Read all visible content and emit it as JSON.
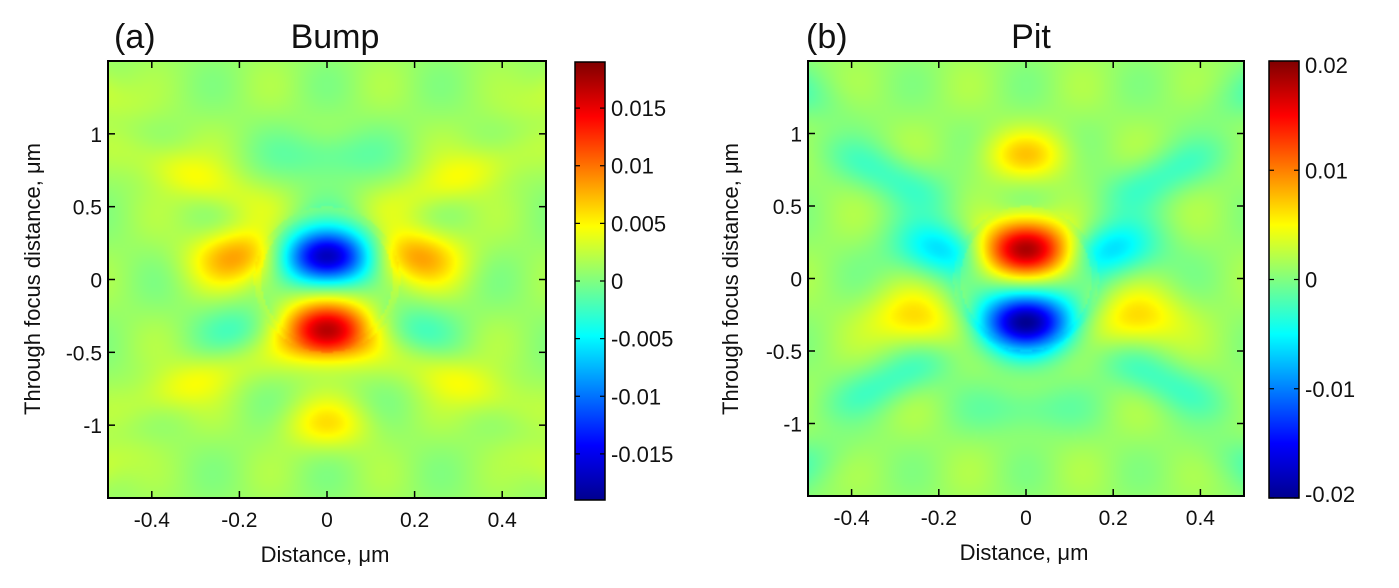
{
  "chart_data": [
    {
      "type": "heatmap",
      "panel_label": "(a)",
      "title": "Bump",
      "xlabel": "Distance, μm",
      "ylabel": "Through focus distance, μm",
      "xlim": [
        -0.5,
        0.5
      ],
      "ylim": [
        -1.5,
        1.5
      ],
      "xticks": [
        -0.4,
        -0.2,
        0,
        0.2,
        0.4
      ],
      "xtick_labels": [
        "-0.4",
        "-0.2",
        "0",
        "0.2",
        "0.4"
      ],
      "yticks": [
        1,
        0.5,
        0,
        -0.5,
        -1
      ],
      "ytick_labels": [
        "1",
        "0.5",
        "0",
        "-0.5",
        "-1"
      ],
      "colorbar": {
        "colormap": "jet",
        "range": [
          -0.019,
          0.019
        ],
        "ticks": [
          0.015,
          0.01,
          0.005,
          0,
          -0.005,
          -0.01,
          -0.015
        ],
        "tick_labels": [
          "0.015",
          "0.01",
          "0.005",
          "0",
          "-0.005",
          "-0.01",
          "-0.015"
        ]
      },
      "features": [
        {
          "x": 0.0,
          "y": 0.15,
          "value": -0.019
        },
        {
          "x": 0.0,
          "y": -0.35,
          "value": 0.017
        },
        {
          "x": -0.2,
          "y": 0.15,
          "value": 0.007
        },
        {
          "x": 0.2,
          "y": 0.15,
          "value": 0.007
        },
        {
          "x": -0.17,
          "y": -0.33,
          "value": -0.004
        },
        {
          "x": 0.17,
          "y": -0.33,
          "value": -0.004
        },
        {
          "x": 0.0,
          "y": -1.0,
          "value": 0.004
        },
        {
          "x": 0.0,
          "y": 0.85,
          "value": -0.003
        }
      ]
    },
    {
      "type": "heatmap",
      "panel_label": "(b)",
      "title": "Pit",
      "xlabel": "Distance, μm",
      "ylabel": "Through focus distance, μm",
      "xlim": [
        -0.5,
        0.5
      ],
      "ylim": [
        -1.5,
        1.5
      ],
      "xticks": [
        -0.4,
        -0.2,
        0,
        0.2,
        0.4
      ],
      "xtick_labels": [
        "-0.4",
        "-0.2",
        "0",
        "0.2",
        "0.4"
      ],
      "yticks": [
        1,
        0.5,
        0,
        -0.5,
        -1
      ],
      "ytick_labels": [
        "1",
        "0.5",
        "0",
        "-0.5",
        "-1"
      ],
      "colorbar": {
        "colormap": "jet",
        "range": [
          -0.02,
          0.02
        ],
        "ticks": [
          0.02,
          0.01,
          0,
          -0.01,
          -0.02
        ],
        "tick_labels": [
          "0.02",
          "0.01",
          "0",
          "-0.01",
          "-0.02"
        ]
      },
      "features": [
        {
          "x": 0.0,
          "y": 0.2,
          "value": 0.018
        },
        {
          "x": 0.0,
          "y": -0.3,
          "value": -0.02
        },
        {
          "x": -0.2,
          "y": 0.2,
          "value": -0.007
        },
        {
          "x": 0.2,
          "y": 0.2,
          "value": -0.007
        },
        {
          "x": -0.25,
          "y": -0.28,
          "value": 0.006
        },
        {
          "x": 0.25,
          "y": -0.28,
          "value": 0.006
        },
        {
          "x": 0.0,
          "y": 0.85,
          "value": 0.005
        },
        {
          "x": 0.0,
          "y": -0.9,
          "value": -0.003
        }
      ]
    }
  ]
}
